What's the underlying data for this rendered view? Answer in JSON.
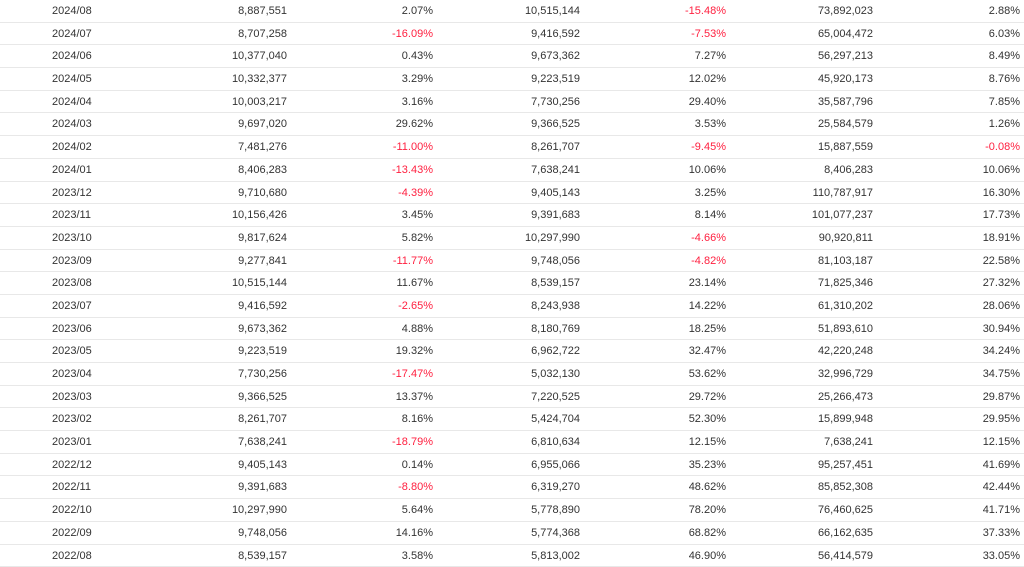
{
  "colors": {
    "text": "#333333",
    "negative": "#ff1f3f",
    "row_border": "#e8e8e8"
  },
  "rows": [
    [
      "2024/08",
      "8,887,551",
      "2.07%",
      "10,515,144",
      "-15.48%",
      "73,892,023",
      "2.88%"
    ],
    [
      "2024/07",
      "8,707,258",
      "-16.09%",
      "9,416,592",
      "-7.53%",
      "65,004,472",
      "6.03%"
    ],
    [
      "2024/06",
      "10,377,040",
      "0.43%",
      "9,673,362",
      "7.27%",
      "56,297,213",
      "8.49%"
    ],
    [
      "2024/05",
      "10,332,377",
      "3.29%",
      "9,223,519",
      "12.02%",
      "45,920,173",
      "8.76%"
    ],
    [
      "2024/04",
      "10,003,217",
      "3.16%",
      "7,730,256",
      "29.40%",
      "35,587,796",
      "7.85%"
    ],
    [
      "2024/03",
      "9,697,020",
      "29.62%",
      "9,366,525",
      "3.53%",
      "25,584,579",
      "1.26%"
    ],
    [
      "2024/02",
      "7,481,276",
      "-11.00%",
      "8,261,707",
      "-9.45%",
      "15,887,559",
      "-0.08%"
    ],
    [
      "2024/01",
      "8,406,283",
      "-13.43%",
      "7,638,241",
      "10.06%",
      "8,406,283",
      "10.06%"
    ],
    [
      "2023/12",
      "9,710,680",
      "-4.39%",
      "9,405,143",
      "3.25%",
      "110,787,917",
      "16.30%"
    ],
    [
      "2023/11",
      "10,156,426",
      "3.45%",
      "9,391,683",
      "8.14%",
      "101,077,237",
      "17.73%"
    ],
    [
      "2023/10",
      "9,817,624",
      "5.82%",
      "10,297,990",
      "-4.66%",
      "90,920,811",
      "18.91%"
    ],
    [
      "2023/09",
      "9,277,841",
      "-11.77%",
      "9,748,056",
      "-4.82%",
      "81,103,187",
      "22.58%"
    ],
    [
      "2023/08",
      "10,515,144",
      "11.67%",
      "8,539,157",
      "23.14%",
      "71,825,346",
      "27.32%"
    ],
    [
      "2023/07",
      "9,416,592",
      "-2.65%",
      "8,243,938",
      "14.22%",
      "61,310,202",
      "28.06%"
    ],
    [
      "2023/06",
      "9,673,362",
      "4.88%",
      "8,180,769",
      "18.25%",
      "51,893,610",
      "30.94%"
    ],
    [
      "2023/05",
      "9,223,519",
      "19.32%",
      "6,962,722",
      "32.47%",
      "42,220,248",
      "34.24%"
    ],
    [
      "2023/04",
      "7,730,256",
      "-17.47%",
      "5,032,130",
      "53.62%",
      "32,996,729",
      "34.75%"
    ],
    [
      "2023/03",
      "9,366,525",
      "13.37%",
      "7,220,525",
      "29.72%",
      "25,266,473",
      "29.87%"
    ],
    [
      "2023/02",
      "8,261,707",
      "8.16%",
      "5,424,704",
      "52.30%",
      "15,899,948",
      "29.95%"
    ],
    [
      "2023/01",
      "7,638,241",
      "-18.79%",
      "6,810,634",
      "12.15%",
      "7,638,241",
      "12.15%"
    ],
    [
      "2022/12",
      "9,405,143",
      "0.14%",
      "6,955,066",
      "35.23%",
      "95,257,451",
      "41.69%"
    ],
    [
      "2022/11",
      "9,391,683",
      "-8.80%",
      "6,319,270",
      "48.62%",
      "85,852,308",
      "42.44%"
    ],
    [
      "2022/10",
      "10,297,990",
      "5.64%",
      "5,778,890",
      "78.20%",
      "76,460,625",
      "41.71%"
    ],
    [
      "2022/09",
      "9,748,056",
      "14.16%",
      "5,774,368",
      "68.82%",
      "66,162,635",
      "37.33%"
    ],
    [
      "2022/08",
      "8,539,157",
      "3.58%",
      "5,813,002",
      "46.90%",
      "56,414,579",
      "33.05%"
    ]
  ]
}
